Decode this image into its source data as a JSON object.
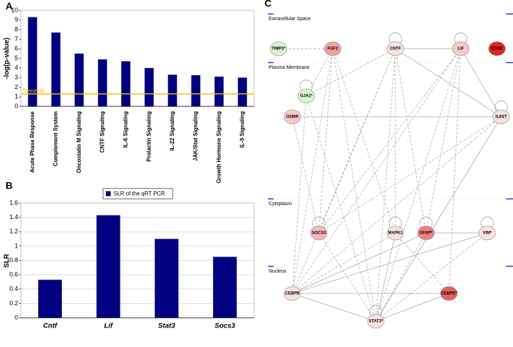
{
  "chart_data": [
    {
      "type": "bar",
      "panel_label": "A",
      "y_label": "-log(p-value)",
      "color": "#000080",
      "grid": false,
      "categories": [
        "Acute Phase Response",
        "Complement System",
        "Oncostatin M Signaling",
        "CNTF Signaling",
        "IL-6 Signaling",
        "Prolactin Signaling",
        "IL-22 Signaling",
        "JAK/Stat Signaling",
        "Growth Hormone Signaling",
        "IL-9 Signaling"
      ],
      "values": [
        9.3,
        7.7,
        5.5,
        4.9,
        4.7,
        4.0,
        3.3,
        3.25,
        3.1,
        3.0
      ],
      "ylim": [
        0,
        10
      ],
      "yticks": [
        0,
        1,
        2,
        3,
        4,
        5,
        6,
        7,
        8,
        9,
        10
      ],
      "threshold": {
        "value": 1.3,
        "label": "Threshold",
        "color": "#e6c200"
      }
    },
    {
      "type": "bar",
      "panel_label": "B",
      "y_label": "SLR",
      "color": "#000080",
      "grid": true,
      "series_name": "SLR of the qRT PCR",
      "categories": [
        "Cntf",
        "Lif",
        "Stat3",
        "Socs3"
      ],
      "values": [
        0.53,
        1.43,
        1.1,
        0.85
      ],
      "ylim": [
        0,
        1.6
      ],
      "yticks": [
        0,
        0.2,
        0.4,
        0.6,
        0.8,
        1,
        1.2,
        1.4,
        1.6
      ]
    }
  ],
  "diagram": {
    "panel_label": "C",
    "compartments": [
      "Extracellular Space",
      "Plasma Membrane",
      "Cytoplasm",
      "Nucleus"
    ],
    "nodes": [
      {
        "label": "TIMP3*",
        "color": "#d8f5d0"
      },
      {
        "label": "FGF2",
        "color": "#f4a0a0"
      },
      {
        "label": "CNTF",
        "color": "#fbe0e0"
      },
      {
        "label": "LIF",
        "color": "#f8c8c8"
      },
      {
        "label": "EDN2",
        "color": "#e82020"
      },
      {
        "label": "GJA1*",
        "color": "#d8f5d0"
      },
      {
        "label": "OSMR",
        "color": "#f8c8c8"
      },
      {
        "label": "IL6ST",
        "color": "#fbe0e0"
      },
      {
        "label": "SOCS3",
        "color": "#f6b8b8"
      },
      {
        "label": "MAPK1",
        "color": "#fbe0e0"
      },
      {
        "label": "GFAP*",
        "color": "#f08080"
      },
      {
        "label": "VIM*",
        "color": "#fbe0e0"
      },
      {
        "label": "CEBPB",
        "color": "#fbe0e0"
      },
      {
        "label": "CEBPD*",
        "color": "#e86060"
      },
      {
        "label": "STAT3*",
        "color": "#fbe0e0"
      }
    ]
  }
}
